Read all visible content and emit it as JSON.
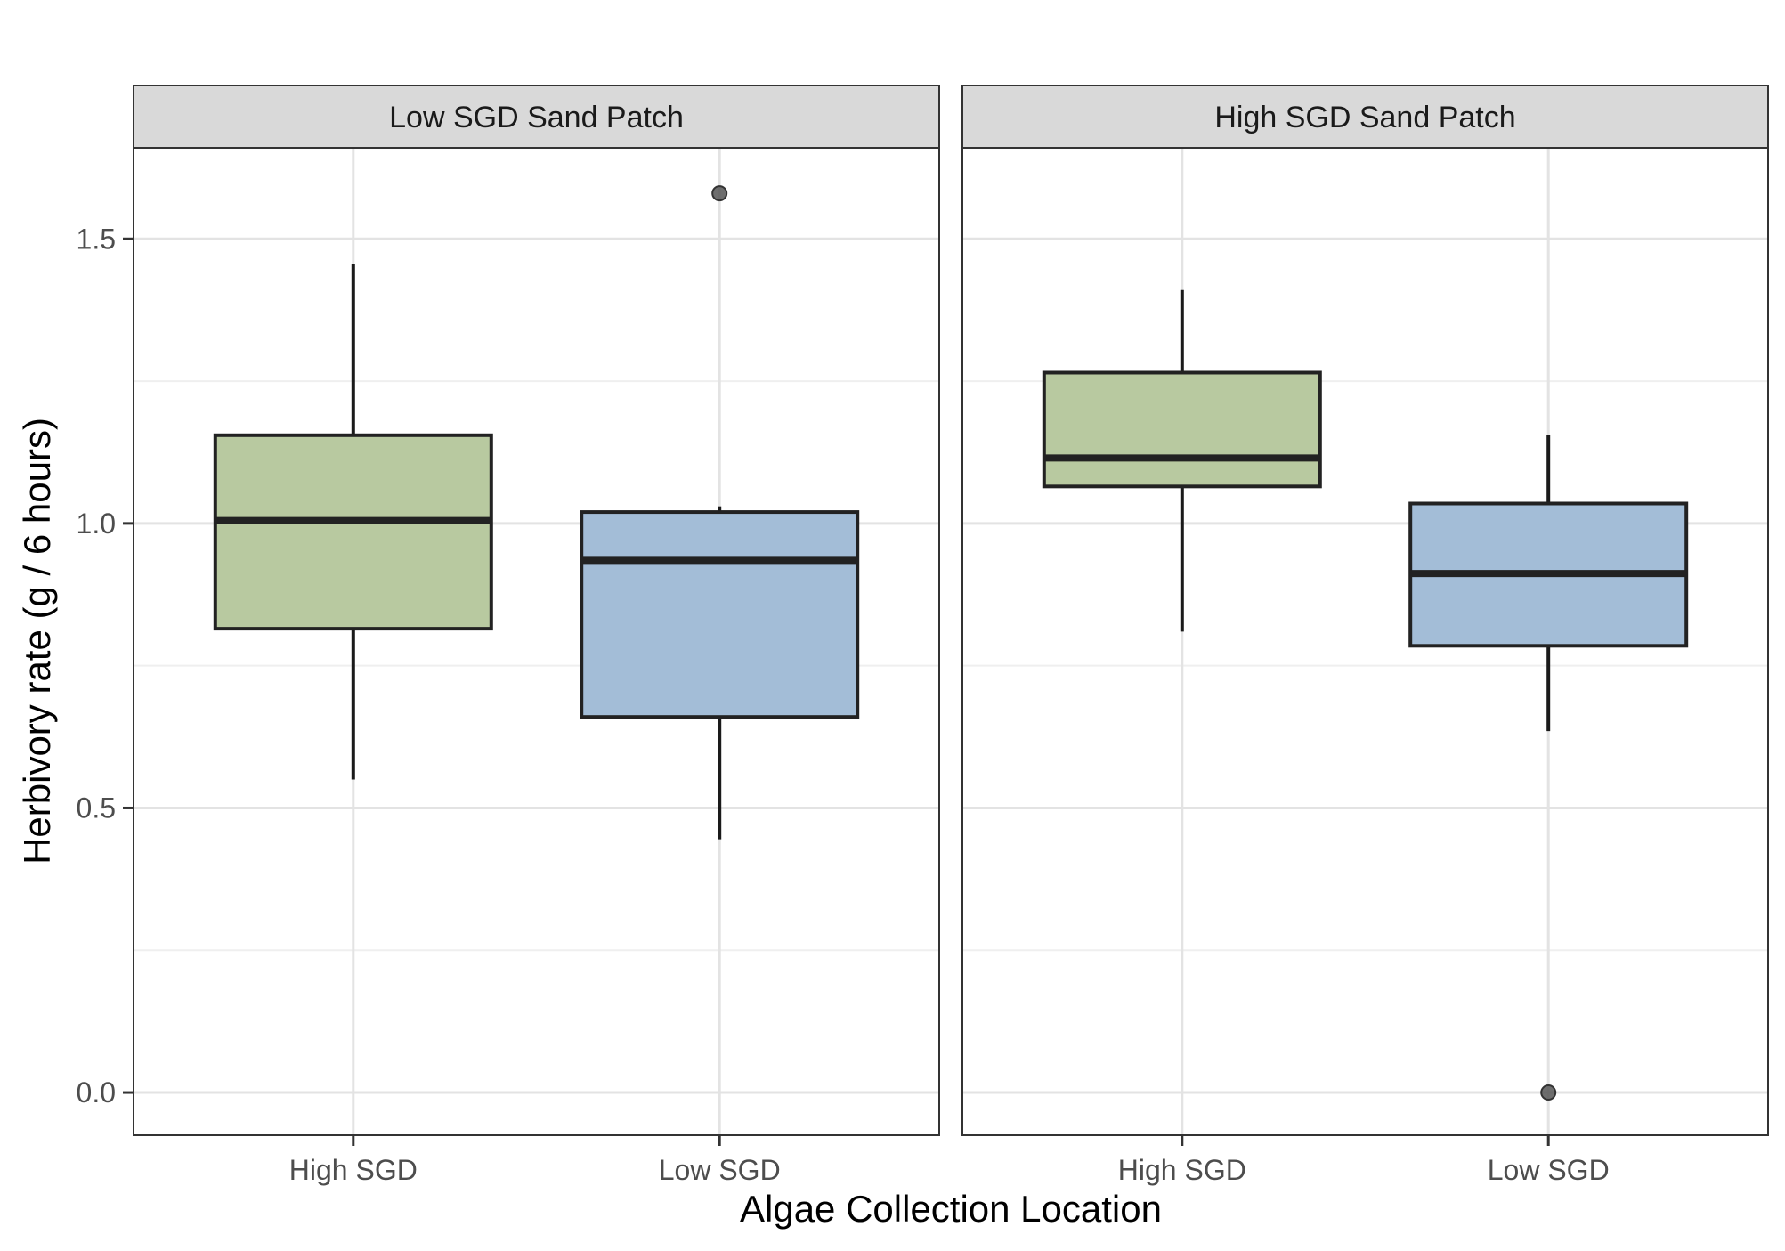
{
  "chart_data": {
    "type": "boxplot",
    "xlabel": "Algae Collection Location",
    "ylabel": "Herbivory rate (g / 6 hours)",
    "ylim": [
      -0.075,
      1.66
    ],
    "yticks": [
      0.0,
      0.5,
      1.0,
      1.5
    ],
    "ytick_labels": [
      "0.0",
      "0.5",
      "1.0",
      "1.5"
    ],
    "categories": [
      "High SGD",
      "Low SGD"
    ],
    "colors": {
      "High SGD": "#b8c9a0",
      "Low SGD": "#a3bdd7"
    },
    "grid": true,
    "facets": [
      {
        "title": "Low SGD Sand Patch",
        "boxes": [
          {
            "category": "High SGD",
            "whisker_low": 0.55,
            "q1": 0.815,
            "median": 1.005,
            "q3": 1.155,
            "whisker_high": 1.455,
            "outliers": []
          },
          {
            "category": "Low SGD",
            "whisker_low": 0.445,
            "q1": 0.66,
            "median": 0.935,
            "q3": 1.02,
            "whisker_high": 1.03,
            "outliers": [
              1.58
            ]
          }
        ]
      },
      {
        "title": "High SGD Sand Patch",
        "boxes": [
          {
            "category": "High SGD",
            "whisker_low": 0.81,
            "q1": 1.065,
            "median": 1.115,
            "q3": 1.265,
            "whisker_high": 1.41,
            "outliers": []
          },
          {
            "category": "Low SGD",
            "whisker_low": 0.635,
            "q1": 0.785,
            "median": 0.912,
            "q3": 1.035,
            "whisker_high": 1.155,
            "outliers": [
              0.0
            ]
          }
        ]
      }
    ]
  }
}
